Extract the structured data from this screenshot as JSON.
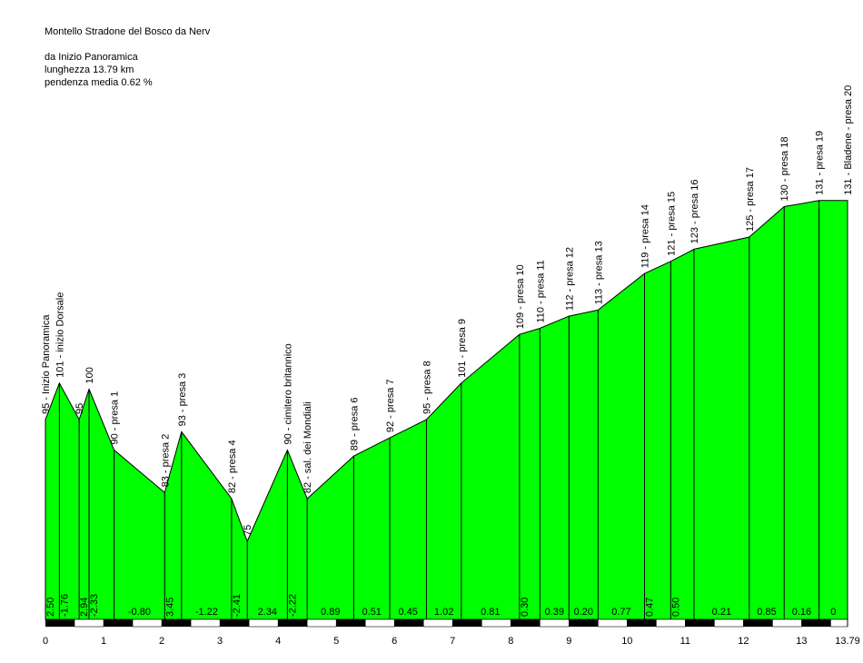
{
  "header": {
    "route": "Montello Stradone del Bosco da Nerv",
    "start": "da Inizio Panoramica",
    "length": "lunghezza 13.79 km",
    "gradient": "pendenza media 0.62 %"
  },
  "colors": {
    "fill": "#00ff00",
    "line": "#000000",
    "scale_dark": "#000000",
    "scale_light": "#ffffff"
  },
  "chart_data": {
    "type": "area",
    "title": "Montello Stradone del Bosco da Nerv",
    "xlabel": "",
    "ylabel": "",
    "xlim": [
      0,
      13.79
    ],
    "ylim": [
      60,
      145
    ],
    "x_ticks": [
      "0",
      "1",
      "2",
      "3",
      "4",
      "5",
      "6",
      "7",
      "8",
      "9",
      "10",
      "11",
      "12",
      "13",
      "13.79"
    ],
    "points": [
      {
        "km": 0.0,
        "alt": 95,
        "label": "95 - Inizio Panoramica"
      },
      {
        "km": 0.24,
        "alt": 101,
        "label": "101 - inizio Dorsale"
      },
      {
        "km": 0.58,
        "alt": 95,
        "label": "95"
      },
      {
        "km": 0.75,
        "alt": 100,
        "label": "100"
      },
      {
        "km": 1.18,
        "alt": 90,
        "label": "90 - presa 1"
      },
      {
        "km": 2.05,
        "alt": 83,
        "label": "83 - presa 2"
      },
      {
        "km": 2.34,
        "alt": 93,
        "label": "93 - presa 3"
      },
      {
        "km": 3.2,
        "alt": 82,
        "label": "82 - presa 4"
      },
      {
        "km": 3.47,
        "alt": 75,
        "label": "75"
      },
      {
        "km": 4.16,
        "alt": 90,
        "label": "90 - cimitero britannico"
      },
      {
        "km": 4.5,
        "alt": 82,
        "label": "82 - sal. dei Mondiali"
      },
      {
        "km": 5.3,
        "alt": 89,
        "label": "89 - presa 6"
      },
      {
        "km": 5.92,
        "alt": 92,
        "label": "92 - presa 7"
      },
      {
        "km": 6.55,
        "alt": 95,
        "label": "95 - presa 8"
      },
      {
        "km": 7.15,
        "alt": 101,
        "label": "101 - presa 9"
      },
      {
        "km": 8.15,
        "alt": 109,
        "label": "109 - presa 10"
      },
      {
        "km": 8.5,
        "alt": 110,
        "label": "110 - presa 11"
      },
      {
        "km": 9.0,
        "alt": 112,
        "label": "112 - presa 12"
      },
      {
        "km": 9.5,
        "alt": 113,
        "label": "113 - presa 13"
      },
      {
        "km": 10.3,
        "alt": 119,
        "label": "119 - presa 14"
      },
      {
        "km": 10.75,
        "alt": 121,
        "label": "121 - presa 15"
      },
      {
        "km": 11.15,
        "alt": 123,
        "label": "123 - presa 16"
      },
      {
        "km": 12.1,
        "alt": 125,
        "label": "125 - presa 17"
      },
      {
        "km": 12.7,
        "alt": 130,
        "label": "130 - presa 18"
      },
      {
        "km": 13.3,
        "alt": 131,
        "label": "131 - presa 19"
      },
      {
        "km": 13.79,
        "alt": 131,
        "label": "131 - Bladene - presa 20"
      }
    ],
    "segment_gradients": [
      "2.50",
      "-1.76",
      "2.94",
      "-2.33",
      "-0.80",
      "3.45",
      "-1.22",
      "-2.41",
      "2.34",
      "-2.22",
      "0.89",
      "0.51",
      "0.45",
      "1.02",
      "0.81",
      "0.30",
      "0.39",
      "0.20",
      "0.77",
      "0.47",
      "0.50",
      "0.21",
      "0.85",
      "0.16",
      "0"
    ]
  }
}
